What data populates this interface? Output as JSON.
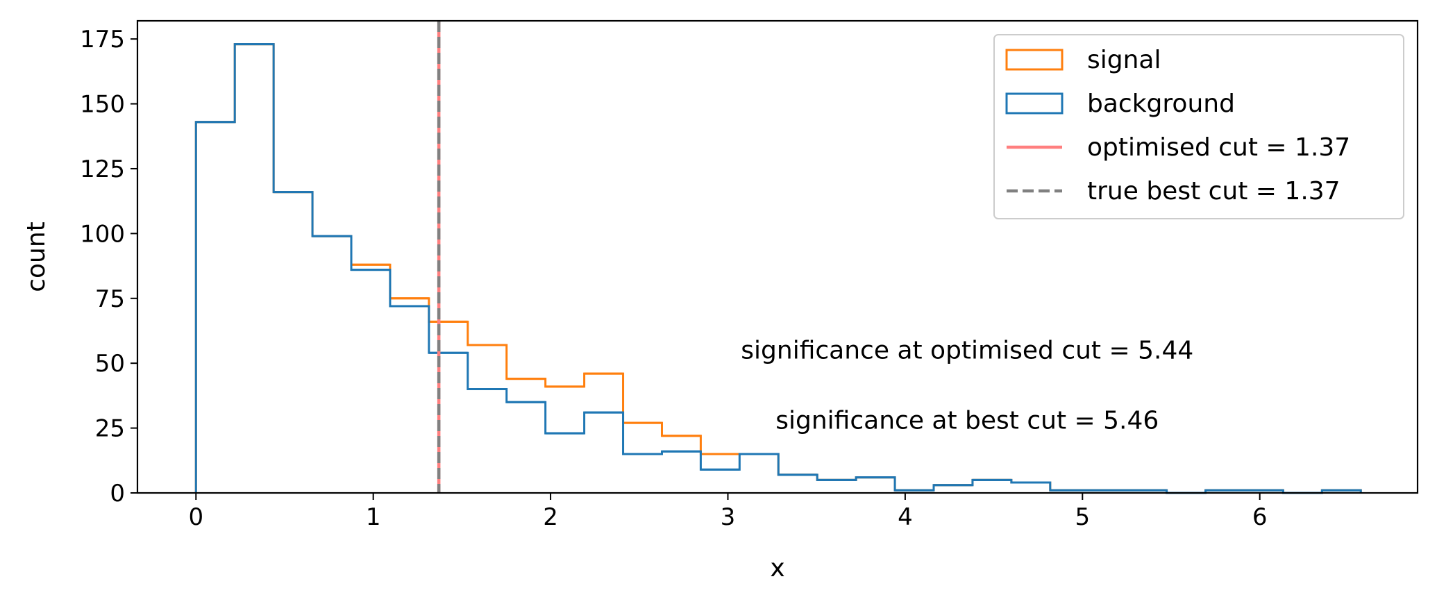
{
  "chart_data": {
    "type": "histogram",
    "xlabel": "x",
    "ylabel": "count",
    "xlim": [
      -0.33,
      6.89
    ],
    "ylim": [
      0,
      182
    ],
    "xticks": [
      0,
      1,
      2,
      3,
      4,
      5,
      6
    ],
    "yticks": [
      0,
      25,
      50,
      75,
      100,
      125,
      150,
      175
    ],
    "bin_edges": [
      0,
      0.219,
      0.438,
      0.657,
      0.876,
      1.095,
      1.314,
      1.533,
      1.752,
      1.971,
      2.19,
      2.409,
      2.628,
      2.847,
      3.066,
      3.285,
      3.504,
      3.723,
      3.942,
      4.161,
      4.38,
      4.599,
      4.818,
      5.037,
      5.256,
      5.475,
      5.694,
      5.913,
      6.132,
      6.351,
      6.57
    ],
    "series": [
      {
        "name": "signal",
        "color": "#ff7f0e",
        "values": [
          143,
          173,
          116,
          99,
          88,
          75,
          66,
          57,
          44,
          41,
          46,
          27,
          22,
          15,
          15,
          7,
          5,
          6,
          1,
          3,
          5,
          4,
          1,
          1,
          1,
          0,
          1,
          1,
          0,
          1
        ]
      },
      {
        "name": "background",
        "color": "#1f77b4",
        "values": [
          143,
          173,
          116,
          99,
          86,
          72,
          54,
          40,
          35,
          23,
          31,
          15,
          16,
          9,
          15,
          7,
          5,
          6,
          1,
          3,
          5,
          4,
          1,
          1,
          1,
          0,
          1,
          1,
          0,
          1
        ]
      }
    ],
    "cuts": [
      {
        "name": "optimised cut = 1.37",
        "x": 1.37,
        "color": "#ff7f7f",
        "style": "solid"
      },
      {
        "name": "true best cut = 1.37",
        "x": 1.37,
        "color": "#808080",
        "style": "dashed"
      }
    ],
    "annotations": [
      {
        "text": "significance at optimised cut = 5.44",
        "x": 4.35,
        "y": 55
      },
      {
        "text": "significance at best cut = 5.46",
        "x": 4.35,
        "y": 28
      }
    ],
    "legend_placement": "top-right",
    "grid": false
  }
}
